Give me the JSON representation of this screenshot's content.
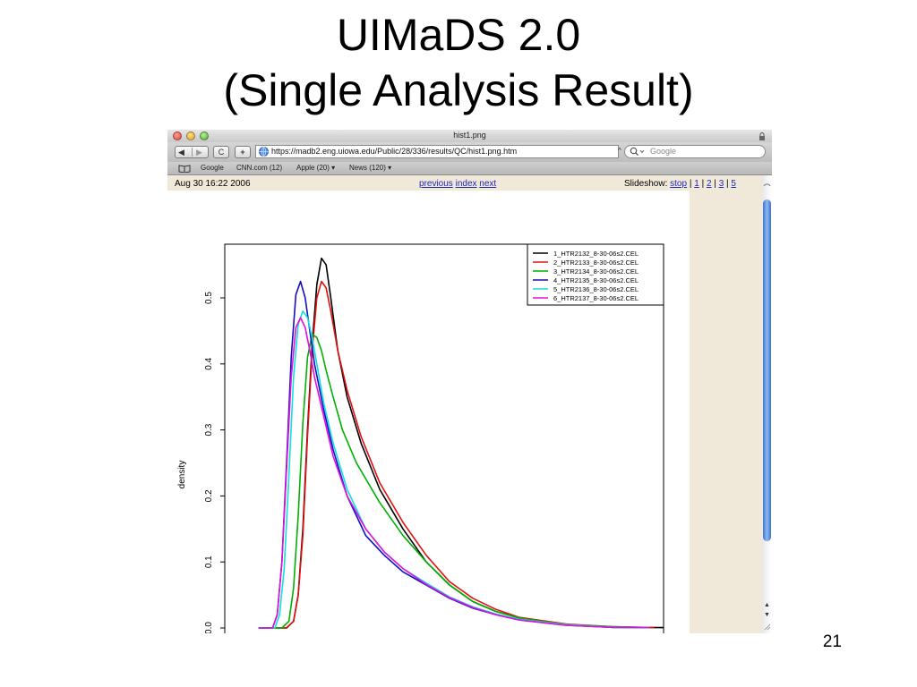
{
  "slide": {
    "title_line1": "UIMaDS 2.0",
    "title_line2": "(Single Analysis Result)",
    "page_number": "21"
  },
  "browser": {
    "window_title": "hist1.png",
    "url": "https://madb2.eng.uiowa.edu/Public/28/336/results/QC/hist1.png.htm",
    "search_placeholder": "Google",
    "back_arrow": "◀",
    "forward_arrow": "▶",
    "reload_glyph": "C",
    "add_glyph": "+",
    "url_caret": "^",
    "bookmarks": [
      {
        "label": "Google"
      },
      {
        "label": "CNN.com (12)"
      },
      {
        "label": "Apple (20) ▾"
      },
      {
        "label": "News (120) ▾"
      }
    ]
  },
  "page": {
    "date": "Aug 30 16:22 2006",
    "nav": {
      "previous": "previous",
      "index": "index",
      "next": "next"
    },
    "slideshow": {
      "label": "Slideshow:",
      "stop": "stop",
      "sep": "|",
      "p1": "1",
      "p2": "2",
      "p3": "3",
      "p5": "5"
    }
  },
  "chart_data": {
    "type": "line",
    "title": "",
    "xlabel": "",
    "ylabel": "density",
    "ylim": [
      0,
      0.58
    ],
    "xlim": [
      0,
      100
    ],
    "yticks": [
      "0.0",
      "0.1",
      "0.2",
      "0.3",
      "0.4",
      "0.5"
    ],
    "ytick_values": [
      0.0,
      0.1,
      0.2,
      0.3,
      0.4,
      0.5
    ],
    "legend_position": "top-right",
    "series": [
      {
        "name": "1_HTR2132_8-30-06s2.CEL",
        "color": "#000000",
        "x": [
          4,
          10,
          11.5,
          12.5,
          13.5,
          14.5,
          15.5,
          16.5,
          17.5,
          18.5,
          19.5,
          21,
          23,
          26,
          30,
          35,
          40,
          45,
          50,
          55,
          60,
          70,
          80,
          91
        ],
        "y": [
          0,
          0,
          0.01,
          0.05,
          0.15,
          0.3,
          0.43,
          0.52,
          0.56,
          0.55,
          0.5,
          0.42,
          0.35,
          0.28,
          0.21,
          0.15,
          0.1,
          0.065,
          0.04,
          0.025,
          0.015,
          0.005,
          0.001,
          0.0005
        ]
      },
      {
        "name": "2_HTR2133_8-30-06s2.CEL",
        "color": "#e01010",
        "x": [
          4,
          10,
          11.5,
          12.5,
          13.5,
          14.5,
          15.5,
          16.5,
          17.5,
          18.5,
          19.5,
          21,
          23,
          26,
          30,
          35,
          40,
          45,
          50,
          55,
          60,
          70,
          80,
          89
        ],
        "y": [
          0,
          0,
          0.01,
          0.05,
          0.14,
          0.29,
          0.42,
          0.5,
          0.525,
          0.515,
          0.48,
          0.42,
          0.36,
          0.29,
          0.22,
          0.16,
          0.11,
          0.07,
          0.045,
          0.028,
          0.016,
          0.006,
          0.002,
          0.0005
        ]
      },
      {
        "name": "3_HTR2134_8-30-06s2.CEL",
        "color": "#00b000",
        "x": [
          4,
          9,
          10.5,
          11.5,
          12.5,
          13.5,
          14.5,
          15.5,
          16.5,
          17.5,
          18.5,
          20,
          22,
          25,
          30,
          35,
          40,
          45,
          50,
          55,
          60,
          70,
          80,
          88
        ],
        "y": [
          0,
          0,
          0.01,
          0.06,
          0.17,
          0.31,
          0.41,
          0.445,
          0.44,
          0.42,
          0.39,
          0.35,
          0.3,
          0.25,
          0.19,
          0.14,
          0.1,
          0.065,
          0.04,
          0.025,
          0.015,
          0.005,
          0.002,
          0.0005
        ]
      },
      {
        "name": "4_HTR2135_8-30-06s2.CEL",
        "color": "#1010c0",
        "x": [
          4,
          7,
          8,
          9,
          10,
          11,
          12,
          13,
          14,
          15,
          16,
          18,
          20,
          23,
          27,
          31,
          35,
          40,
          45,
          50,
          55,
          60,
          70,
          80,
          88
        ],
        "y": [
          0,
          0,
          0.02,
          0.1,
          0.25,
          0.41,
          0.505,
          0.525,
          0.5,
          0.45,
          0.4,
          0.33,
          0.27,
          0.2,
          0.14,
          0.11,
          0.085,
          0.065,
          0.045,
          0.03,
          0.02,
          0.012,
          0.004,
          0.001,
          0.0005
        ]
      },
      {
        "name": "5_HTR2136_8-30-06s2.CEL",
        "color": "#10e0e0",
        "x": [
          4,
          7.5,
          8.5,
          9.5,
          10.5,
          11.5,
          12.5,
          13.5,
          14.5,
          15.5,
          16.5,
          18,
          20,
          23,
          27,
          31,
          35,
          40,
          45,
          50,
          55,
          60,
          70,
          80,
          88
        ],
        "y": [
          0,
          0,
          0.02,
          0.09,
          0.23,
          0.38,
          0.46,
          0.48,
          0.47,
          0.44,
          0.4,
          0.34,
          0.28,
          0.21,
          0.15,
          0.115,
          0.09,
          0.068,
          0.047,
          0.032,
          0.021,
          0.013,
          0.005,
          0.001,
          0.0005
        ]
      },
      {
        "name": "6_HTR2137_8-30-06s2.CEL",
        "color": "#e010e0",
        "x": [
          4,
          7,
          8,
          9,
          10,
          11,
          12,
          13,
          14,
          15,
          16,
          18,
          20,
          23,
          27,
          31,
          35,
          40,
          45,
          50,
          55,
          60,
          70,
          80,
          88
        ],
        "y": [
          0,
          0,
          0.02,
          0.1,
          0.24,
          0.38,
          0.455,
          0.47,
          0.455,
          0.42,
          0.38,
          0.32,
          0.26,
          0.2,
          0.15,
          0.115,
          0.09,
          0.066,
          0.046,
          0.031,
          0.02,
          0.012,
          0.004,
          0.001,
          0.0005
        ]
      }
    ]
  }
}
